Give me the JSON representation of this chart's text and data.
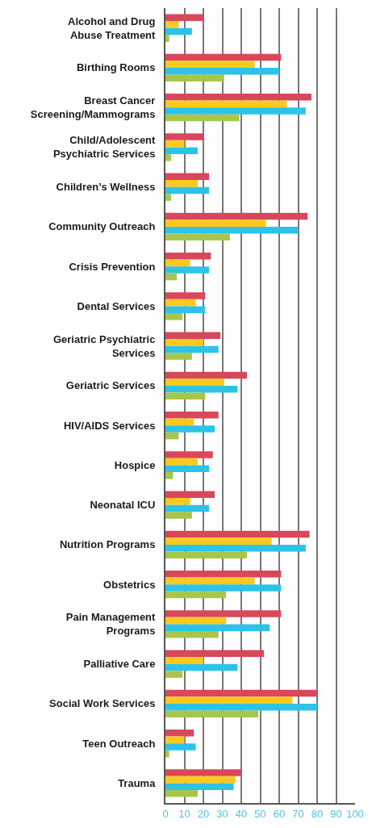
{
  "chart_data": {
    "type": "bar",
    "orientation": "horizontal",
    "categories": [
      "Alcohol and Drug\nAbuse Treatment",
      "Birthing Rooms",
      "Breast Cancer\nScreening/Mammograms",
      "Child/Adolescent\nPsychiatric Services",
      "Children’s Wellness",
      "Community Outreach",
      "Crisis Prevention",
      "Dental Services",
      "Geriatric Psychiatric\nServices",
      "Geriatric Services",
      "HIV/AIDS Services",
      "Hospice",
      "Neonatal ICU",
      "Nutrition Programs",
      "Obstetrics",
      "Pain Management\nPrograms",
      "Palliative Care",
      "Social Work Services",
      "Teen Outreach",
      "Trauma"
    ],
    "series": [
      {
        "color": "#d9475a",
        "values": [
          20,
          61,
          77,
          20,
          23,
          75,
          24,
          21,
          29,
          43,
          28,
          25,
          26,
          76,
          61,
          61,
          52,
          80,
          15,
          40
        ]
      },
      {
        "color": "#fdc91e",
        "values": [
          7,
          47,
          64,
          10,
          17,
          53,
          13,
          16,
          20,
          31,
          15,
          17,
          13,
          56,
          47,
          32,
          20,
          67,
          10,
          37
        ]
      },
      {
        "color": "#2dc3e8",
        "values": [
          14,
          60,
          74,
          17,
          23,
          70,
          23,
          21,
          28,
          38,
          26,
          23,
          23,
          74,
          61,
          55,
          38,
          80,
          16,
          36
        ]
      },
      {
        "color": "#a8c64b",
        "values": [
          2,
          31,
          39,
          3,
          3,
          34,
          6,
          9,
          14,
          21,
          7,
          4,
          14,
          43,
          32,
          28,
          9,
          49,
          2,
          17
        ]
      }
    ],
    "xlim": [
      0,
      100
    ],
    "xticks": [
      0,
      10,
      20,
      30,
      40,
      50,
      60,
      70,
      80,
      90,
      100
    ],
    "grid": "x",
    "legend": false
  }
}
